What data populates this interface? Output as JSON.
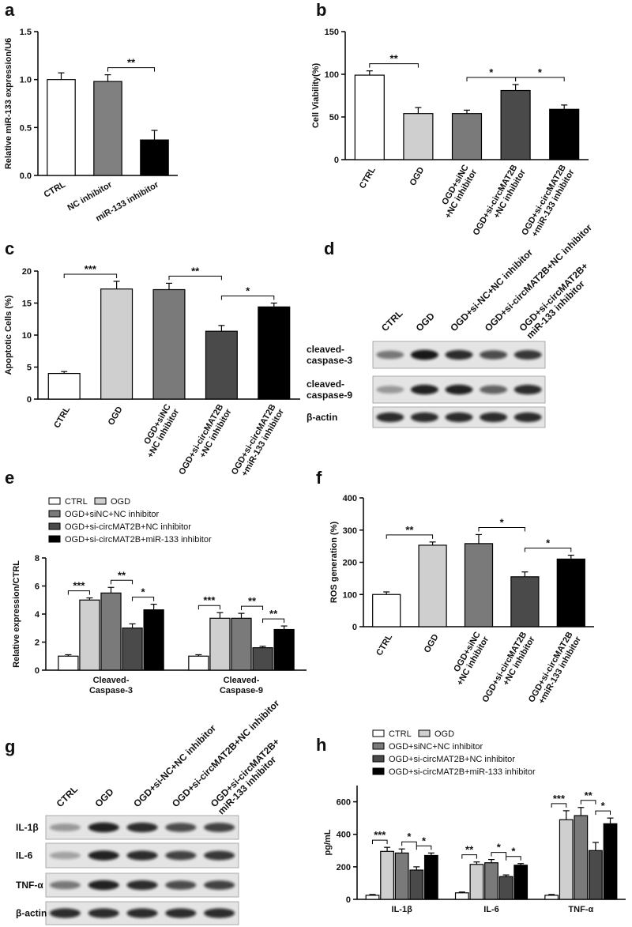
{
  "chart_data": [
    {
      "panel": "a",
      "type": "bar",
      "ylabel": "Relative miR-133 expression/U6",
      "categories": [
        [
          "CTRL"
        ],
        [
          "NC inhibitor"
        ],
        [
          "miR-133 inhibitor"
        ]
      ],
      "values": [
        1.0,
        0.98,
        0.37
      ],
      "errors": [
        0.07,
        0.07,
        0.1
      ],
      "colors": [
        "#ffffff",
        "#808080",
        "#000000"
      ],
      "ylim": [
        0,
        1.5
      ],
      "yticks": [
        {
          "value": 0,
          "label": "0.0"
        },
        0.5,
        {
          "value": 1,
          "label": "1.0"
        },
        1.5
      ],
      "annotations": [
        {
          "text": "**",
          "between": [
            1,
            2
          ]
        }
      ]
    },
    {
      "panel": "b",
      "type": "bar",
      "ylabel": "Cell Viability(%)",
      "categories": [
        [
          "CTRL"
        ],
        [
          "OGD"
        ],
        [
          "OGD+siNC",
          "+NC inhibitor"
        ],
        [
          "OGD+si-circMAT2B",
          "+NC inhibitor"
        ],
        [
          "OGD+si-circMAT2B",
          "+miR-133 inhibitor"
        ]
      ],
      "values": [
        99,
        54,
        54,
        81,
        59
      ],
      "errors": [
        5,
        7,
        4,
        7,
        5
      ],
      "colors": [
        "#ffffff",
        "#cfcfcf",
        "#7a7a7a",
        "#4a4a4a",
        "#000000"
      ],
      "ylim": [
        0,
        150
      ],
      "yticks": [
        0,
        50,
        100,
        150
      ],
      "annotations": [
        {
          "text": "**",
          "between": [
            0,
            1
          ]
        },
        {
          "text": "*",
          "between": [
            2,
            3
          ]
        },
        {
          "text": "*",
          "between": [
            3,
            4
          ]
        }
      ]
    },
    {
      "panel": "c",
      "type": "bar",
      "ylabel": "Apoptotic Cells (%)",
      "categories": [
        [
          "CTRL"
        ],
        [
          "OGD"
        ],
        [
          "OGD+siNC",
          "+NC inhibitor"
        ],
        [
          "OGD+si-circMAT2B",
          "+NC inhibitor"
        ],
        [
          "OGD+si-circMAT2B",
          "+miR-133 inhibitor"
        ]
      ],
      "values": [
        4,
        17.2,
        17.1,
        10.6,
        14.4
      ],
      "errors": [
        0.3,
        1.2,
        1.0,
        0.9,
        0.6
      ],
      "colors": [
        "#ffffff",
        "#cfcfcf",
        "#7a7a7a",
        "#4a4a4a",
        "#000000"
      ],
      "ylim": [
        0,
        20
      ],
      "yticks": [
        0,
        5,
        10,
        15,
        20
      ],
      "annotations": [
        {
          "text": "***",
          "between": [
            0,
            1
          ]
        },
        {
          "text": "**",
          "between": [
            2,
            3
          ]
        },
        {
          "text": "*",
          "between": [
            3,
            4
          ]
        }
      ]
    },
    {
      "panel": "e",
      "type": "grouped_bar",
      "ylabel": "Relative expression/CTRL",
      "categories": [
        [
          "Cleaved-",
          "Caspase-3"
        ],
        [
          "Cleaved-",
          "Caspase-9"
        ]
      ],
      "series": [
        {
          "name": "CTRL",
          "color": "#ffffff",
          "values": [
            1.0,
            1.0
          ],
          "errors": [
            0.1,
            0.1
          ]
        },
        {
          "name": "OGD",
          "color": "#cfcfcf",
          "values": [
            5.0,
            3.7
          ],
          "errors": [
            0.15,
            0.4
          ]
        },
        {
          "name": "OGD+siNC+NC inhibitor",
          "color": "#7a7a7a",
          "values": [
            5.5,
            3.7
          ],
          "errors": [
            0.4,
            0.35
          ]
        },
        {
          "name": "OGD+si-circMAT2B+NC inhibitor",
          "color": "#4a4a4a",
          "values": [
            3.0,
            1.6
          ],
          "errors": [
            0.3,
            0.1
          ]
        },
        {
          "name": "OGD+si-circMAT2B+miR-133 inhibitor",
          "color": "#000000",
          "values": [
            4.3,
            2.9
          ],
          "errors": [
            0.4,
            0.25
          ]
        }
      ],
      "ylim": [
        0,
        8
      ],
      "yticks": [
        0,
        2,
        4,
        6,
        8
      ],
      "annotations": [
        {
          "text": "***",
          "group": 0,
          "between": [
            0,
            1
          ]
        },
        {
          "text": "**",
          "group": 0,
          "between": [
            2,
            3
          ]
        },
        {
          "text": "*",
          "group": 0,
          "between": [
            3,
            4
          ]
        },
        {
          "text": "***",
          "group": 1,
          "between": [
            0,
            1
          ]
        },
        {
          "text": "**",
          "group": 1,
          "between": [
            2,
            3
          ]
        },
        {
          "text": "**",
          "group": 1,
          "between": [
            3,
            4
          ]
        }
      ]
    },
    {
      "panel": "f",
      "type": "bar",
      "ylabel": "ROS generation (%)",
      "categories": [
        [
          "CTRL"
        ],
        [
          "OGD"
        ],
        [
          "OGD+siNC",
          "+NC inhibitor"
        ],
        [
          "OGD+si-circMAT2B",
          "+NC inhibitor"
        ],
        [
          "OGD+si-circMAT2B",
          "+miR-133 inhibitor"
        ]
      ],
      "values": [
        100,
        253,
        258,
        155,
        210
      ],
      "errors": [
        8,
        10,
        28,
        15,
        12
      ],
      "colors": [
        "#ffffff",
        "#cfcfcf",
        "#7a7a7a",
        "#4a4a4a",
        "#000000"
      ],
      "ylim": [
        0,
        400
      ],
      "yticks": [
        0,
        100,
        200,
        300,
        400
      ],
      "annotations": [
        {
          "text": "**",
          "between": [
            0,
            1
          ]
        },
        {
          "text": "*",
          "between": [
            2,
            3
          ]
        },
        {
          "text": "*",
          "between": [
            3,
            4
          ]
        }
      ]
    },
    {
      "panel": "h",
      "type": "grouped_bar",
      "ylabel": "pg/mL",
      "categories": [
        [
          "IL-1β"
        ],
        [
          "IL-6"
        ],
        [
          "TNF-α"
        ]
      ],
      "series": [
        {
          "name": "CTRL",
          "color": "#ffffff",
          "values": [
            25,
            40,
            25
          ],
          "errors": [
            5,
            5,
            5
          ]
        },
        {
          "name": "OGD",
          "color": "#cfcfcf",
          "values": [
            295,
            215,
            490
          ],
          "errors": [
            25,
            15,
            55
          ]
        },
        {
          "name": "OGD+siNC+NC inhibitor",
          "color": "#7a7a7a",
          "values": [
            285,
            225,
            515
          ],
          "errors": [
            25,
            20,
            50
          ]
        },
        {
          "name": "OGD+si-circMAT2B+NC inhibitor",
          "color": "#4a4a4a",
          "values": [
            180,
            140,
            300
          ],
          "errors": [
            20,
            10,
            50
          ]
        },
        {
          "name": "OGD+si-circMAT2B+miR-133 inhibitor",
          "color": "#000000",
          "values": [
            270,
            210,
            465
          ],
          "errors": [
            15,
            10,
            35
          ]
        }
      ],
      "ylim": [
        0,
        700
      ],
      "yticks": [
        0,
        200,
        400,
        600
      ],
      "annotations": [
        {
          "text": "***",
          "group": 0,
          "between": [
            0,
            1
          ]
        },
        {
          "text": "*",
          "group": 0,
          "between": [
            2,
            3
          ]
        },
        {
          "text": "*",
          "group": 0,
          "between": [
            3,
            4
          ]
        },
        {
          "text": "**",
          "group": 1,
          "between": [
            0,
            1
          ]
        },
        {
          "text": "*",
          "group": 1,
          "between": [
            2,
            3
          ]
        },
        {
          "text": "*",
          "group": 1,
          "between": [
            3,
            4
          ]
        },
        {
          "text": "***",
          "group": 2,
          "between": [
            0,
            1
          ]
        },
        {
          "text": "**",
          "group": 2,
          "between": [
            2,
            3
          ]
        },
        {
          "text": "*",
          "group": 2,
          "between": [
            3,
            4
          ]
        }
      ]
    }
  ],
  "blots": [
    {
      "panel": "d",
      "lanes": [
        [
          "CTRL"
        ],
        [
          "OGD"
        ],
        [
          "OGD+si-NC+NC inhibitor"
        ],
        [
          "OGD+si-circMAT2B+NC inhibitor"
        ],
        [
          "OGD+si-circMAT2B+",
          "miR-133 inhibitor"
        ]
      ],
      "rows": [
        [
          "cleaved-",
          "caspase-3"
        ],
        [
          "cleaved-",
          "caspase-9"
        ],
        [
          "β-actin"
        ]
      ]
    },
    {
      "panel": "g",
      "lanes": [
        [
          "CTRL"
        ],
        [
          "OGD"
        ],
        [
          "OGD+si-NC+NC inhibitor"
        ],
        [
          "OGD+si-circMAT2B+NC inhibitor"
        ],
        [
          "OGD+si-circMAT2B+",
          "miR-133 inhibitor"
        ]
      ],
      "rows": [
        [
          "IL-1β"
        ],
        [
          "IL-6"
        ],
        [
          "TNF-α"
        ],
        [
          "β-actin"
        ]
      ]
    }
  ]
}
